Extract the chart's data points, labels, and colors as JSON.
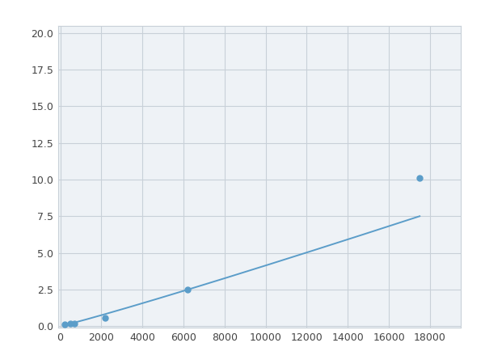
{
  "x": [
    200,
    500,
    700,
    2200,
    6200,
    17500
  ],
  "y": [
    0.1,
    0.15,
    0.2,
    0.55,
    2.5,
    10.1
  ],
  "line_color": "#5b9dc9",
  "marker_color": "#5b9dc9",
  "marker_size": 5,
  "line_width": 1.4,
  "xlim": [
    -100,
    19500
  ],
  "ylim": [
    -0.1,
    20.5
  ],
  "xticks": [
    0,
    2000,
    4000,
    6000,
    8000,
    10000,
    12000,
    14000,
    16000,
    18000
  ],
  "yticks": [
    0.0,
    2.5,
    5.0,
    7.5,
    10.0,
    12.5,
    15.0,
    17.5,
    20.0
  ],
  "grid_color": "#c8d0d8",
  "background_color": "#ffffff",
  "plot_bg_color": "#eef2f6",
  "spine_color": "#c8d0d8"
}
